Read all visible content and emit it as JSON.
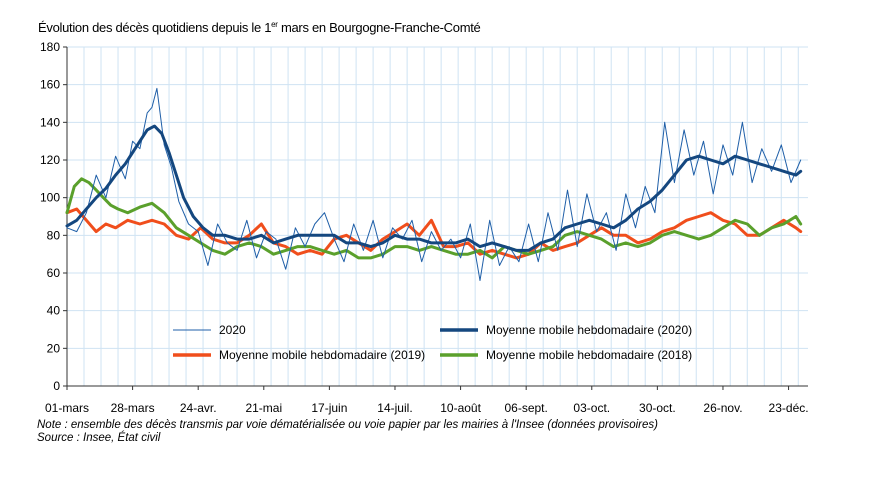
{
  "chart_data": {
    "type": "line",
    "title_pre": "Évolution des décès quotidiens depuis le 1",
    "title_sup": "er",
    "title_post": " mars en Bourgogne-Franche-Comté",
    "ylim": [
      0,
      180
    ],
    "yticks": [
      0,
      20,
      40,
      60,
      80,
      100,
      120,
      140,
      160,
      180
    ],
    "grid": true,
    "xlim_days": [
      0,
      305
    ],
    "xtick_labels": [
      "01-mars",
      "28-mars",
      "24-avr.",
      "21-mai",
      "17-juin",
      "14-juil.",
      "10-août",
      "06-sept.",
      "03-oct.",
      "30-oct.",
      "26-nov.",
      "23-déc."
    ],
    "xtick_days": [
      0,
      27,
      54,
      81,
      108,
      135,
      162,
      189,
      216,
      243,
      270,
      297
    ],
    "legend_position": "bottom-inside",
    "series": [
      {
        "name": "2020",
        "kind": "daily",
        "color": "#1f5fa8",
        "x": [
          0,
          4,
          8,
          12,
          16,
          20,
          24,
          27,
          30,
          33,
          35,
          37,
          40,
          43,
          46,
          50,
          54,
          58,
          62,
          66,
          70,
          74,
          78,
          82,
          86,
          90,
          94,
          98,
          102,
          106,
          110,
          114,
          118,
          122,
          126,
          130,
          134,
          138,
          142,
          146,
          150,
          154,
          158,
          162,
          166,
          170,
          174,
          178,
          182,
          186,
          190,
          194,
          198,
          202,
          206,
          210,
          214,
          218,
          222,
          226,
          230,
          234,
          238,
          242,
          246,
          250,
          254,
          258,
          262,
          266,
          270,
          274,
          278,
          282,
          286,
          290,
          294,
          298,
          302
        ],
        "y": [
          84,
          82,
          92,
          112,
          100,
          122,
          110,
          130,
          126,
          145,
          148,
          158,
          128,
          116,
          98,
          86,
          82,
          64,
          86,
          76,
          72,
          88,
          68,
          82,
          78,
          62,
          84,
          74,
          86,
          92,
          78,
          66,
          86,
          72,
          88,
          68,
          84,
          78,
          88,
          66,
          82,
          72,
          78,
          68,
          86,
          56,
          88,
          64,
          74,
          66,
          86,
          66,
          92,
          72,
          104,
          74,
          102,
          82,
          92,
          72,
          102,
          84,
          106,
          92,
          140,
          108,
          136,
          112,
          130,
          102,
          128,
          112,
          140,
          108,
          126,
          114,
          128,
          108,
          120
        ]
      },
      {
        "name": "Moyenne mobile hebdomadaire (2020)",
        "kind": "moving_average",
        "color": "#14477f",
        "x": [
          0,
          4,
          8,
          12,
          16,
          20,
          24,
          27,
          30,
          33,
          36,
          39,
          42,
          45,
          48,
          52,
          56,
          60,
          65,
          70,
          75,
          80,
          85,
          90,
          95,
          100,
          105,
          110,
          115,
          120,
          125,
          130,
          135,
          140,
          145,
          150,
          155,
          160,
          165,
          170,
          175,
          180,
          185,
          190,
          195,
          200,
          205,
          210,
          215,
          220,
          225,
          230,
          235,
          240,
          245,
          250,
          255,
          260,
          265,
          270,
          275,
          280,
          285,
          290,
          295,
          300,
          302
        ],
        "y": [
          85,
          88,
          94,
          100,
          105,
          112,
          118,
          124,
          130,
          136,
          138,
          134,
          124,
          112,
          100,
          90,
          84,
          80,
          80,
          78,
          78,
          80,
          76,
          78,
          80,
          80,
          80,
          80,
          76,
          76,
          74,
          76,
          80,
          78,
          78,
          76,
          76,
          76,
          78,
          74,
          76,
          74,
          72,
          72,
          76,
          78,
          84,
          86,
          88,
          86,
          84,
          88,
          94,
          98,
          104,
          112,
          120,
          122,
          120,
          118,
          122,
          120,
          118,
          116,
          114,
          112,
          114
        ]
      },
      {
        "name": "Moyenne mobile hebdomadaire (2019)",
        "kind": "moving_average",
        "color": "#f04e1c",
        "x": [
          0,
          4,
          8,
          12,
          16,
          20,
          25,
          30,
          35,
          40,
          45,
          50,
          55,
          60,
          65,
          70,
          75,
          80,
          85,
          90,
          95,
          100,
          105,
          110,
          115,
          120,
          125,
          130,
          135,
          140,
          145,
          150,
          155,
          160,
          165,
          170,
          175,
          180,
          185,
          190,
          195,
          200,
          205,
          210,
          215,
          220,
          225,
          230,
          235,
          240,
          245,
          250,
          255,
          260,
          265,
          270,
          275,
          280,
          285,
          290,
          295,
          300,
          302
        ],
        "y": [
          92,
          94,
          88,
          82,
          86,
          84,
          88,
          86,
          88,
          86,
          80,
          78,
          84,
          78,
          76,
          76,
          80,
          86,
          76,
          74,
          70,
          72,
          70,
          78,
          80,
          76,
          72,
          78,
          82,
          86,
          80,
          88,
          74,
          74,
          76,
          70,
          72,
          70,
          68,
          70,
          76,
          72,
          74,
          76,
          80,
          84,
          80,
          80,
          76,
          78,
          82,
          84,
          88,
          90,
          92,
          88,
          86,
          80,
          80,
          84,
          88,
          84,
          82
        ]
      },
      {
        "name": "Moyenne mobile hebdomadaire (2018)",
        "kind": "moving_average",
        "color": "#5aa02c",
        "x": [
          0,
          3,
          6,
          9,
          12,
          15,
          18,
          21,
          25,
          30,
          35,
          40,
          45,
          50,
          55,
          60,
          65,
          70,
          75,
          80,
          85,
          90,
          95,
          100,
          105,
          110,
          115,
          120,
          125,
          130,
          135,
          140,
          145,
          150,
          155,
          160,
          165,
          170,
          175,
          180,
          185,
          190,
          195,
          200,
          205,
          210,
          215,
          220,
          225,
          230,
          235,
          240,
          245,
          250,
          255,
          260,
          265,
          270,
          275,
          280,
          285,
          290,
          295,
          300,
          302
        ],
        "y": [
          92,
          106,
          110,
          108,
          104,
          100,
          96,
          94,
          92,
          95,
          97,
          92,
          84,
          80,
          76,
          72,
          70,
          74,
          76,
          74,
          70,
          72,
          74,
          74,
          72,
          70,
          72,
          68,
          68,
          70,
          74,
          74,
          72,
          74,
          72,
          70,
          70,
          72,
          68,
          74,
          72,
          70,
          72,
          74,
          80,
          82,
          80,
          78,
          74,
          76,
          74,
          76,
          80,
          82,
          80,
          78,
          80,
          84,
          88,
          86,
          80,
          84,
          86,
          90,
          86
        ]
      }
    ]
  },
  "note_line1": "Note : ensemble des décès transmis par voie dématérialisée ou voie papier par les mairies à l'Insee (données provisoires)",
  "note_line2": "Source : Insee, État civil"
}
